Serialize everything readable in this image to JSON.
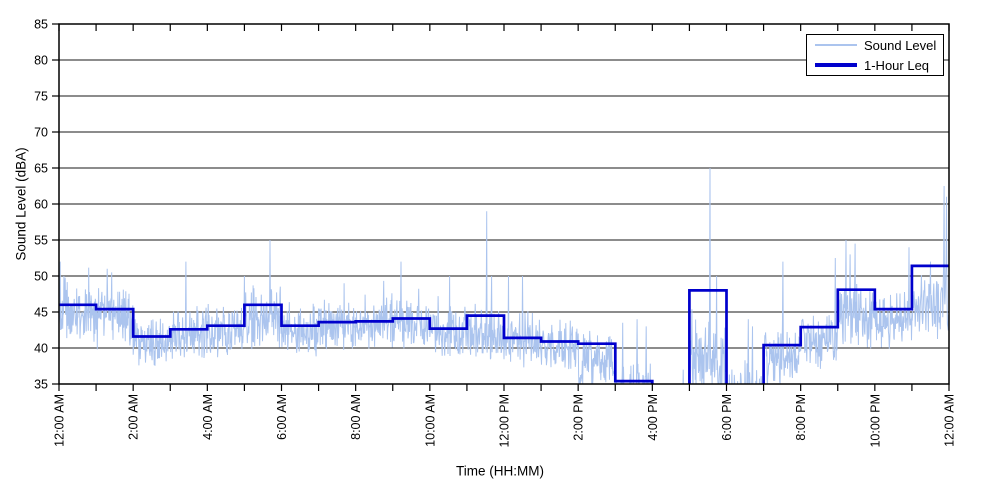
{
  "chart_data": {
    "type": "line",
    "title": "",
    "xlabel": "Time (HH:MM)",
    "ylabel": "Sound Level (dBA)",
    "ylim": [
      35,
      85
    ],
    "yticks": [
      35,
      40,
      45,
      50,
      55,
      60,
      65,
      70,
      75,
      80,
      85
    ],
    "x_range_hours": [
      0,
      24
    ],
    "x_major_tick_every_hours": 2,
    "x_minor_tick_every_hours": 1,
    "x_tick_labels": [
      "12:00 AM",
      "2:00 AM",
      "4:00 AM",
      "6:00 AM",
      "8:00 AM",
      "10:00 AM",
      "12:00 PM",
      "2:00 PM",
      "4:00 PM",
      "6:00 PM",
      "8:00 PM",
      "10:00 PM",
      "12:00 AM"
    ],
    "grid": "horizontal-only",
    "legend": {
      "position": "top-right-inside",
      "entries": [
        "Sound Level",
        "1-Hour Leq"
      ]
    },
    "series": [
      {
        "name": "Sound Level",
        "color": "#abc4ee",
        "kind": "noisy minute-resolution trace (synthesized from measured envelope)",
        "hourly_envelope": {
          "hour_start": [
            "12AM",
            "1AM",
            "2AM",
            "3AM",
            "4AM",
            "5AM",
            "6AM",
            "7AM",
            "8AM",
            "9AM",
            "10AM",
            "11AM",
            "12PM",
            "1PM",
            "2PM",
            "3PM",
            "4PM",
            "5PM",
            "6PM",
            "7PM",
            "8PM",
            "9PM",
            "10PM",
            "11PM"
          ],
          "mean": [
            45.0,
            44.3,
            41.0,
            42.0,
            42.3,
            44.0,
            42.5,
            43.0,
            43.5,
            43.3,
            41.8,
            42.0,
            41.0,
            40.3,
            38.5,
            33.5,
            31.5,
            38.5,
            34.0,
            38.5,
            41.0,
            44.5,
            43.5,
            45.5
          ],
          "spread": [
            5,
            5,
            4,
            4.2,
            4.2,
            5,
            4.2,
            3.8,
            3.8,
            4.2,
            4.2,
            4.2,
            4.2,
            4.2,
            5,
            5,
            3,
            6,
            5,
            4.5,
            4.5,
            5.5,
            4.5,
            4.5
          ]
        },
        "notable_spikes_minute_dBA": [
          [
            2,
            52
          ],
          [
            8,
            50
          ],
          [
            78,
            51
          ],
          [
            85,
            50.5
          ],
          [
            205,
            52
          ],
          [
            300,
            50
          ],
          [
            341,
            55
          ],
          [
            553,
            52
          ],
          [
            632,
            50
          ],
          [
            692,
            59
          ],
          [
            700,
            50
          ],
          [
            727,
            50
          ],
          [
            750,
            50
          ],
          [
            912,
            43.5
          ],
          [
            935,
            44
          ],
          [
            950,
            43
          ],
          [
            1010,
            37
          ],
          [
            1053,
            65
          ],
          [
            1064,
            50
          ],
          [
            1115,
            44
          ],
          [
            1122,
            43
          ],
          [
            1154,
            38
          ],
          [
            1171,
            52
          ],
          [
            1256,
            52.5
          ],
          [
            1273,
            55
          ],
          [
            1280,
            53
          ],
          [
            1288,
            54.5
          ],
          [
            1375,
            54
          ],
          [
            1410,
            52
          ],
          [
            1432,
            62.5
          ],
          [
            1436,
            61
          ]
        ],
        "clipped_below_dBA": 35
      },
      {
        "name": "1-Hour Leq",
        "color": "#0000cc",
        "kind": "hourly step line",
        "hour_start": [
          "12AM",
          "1AM",
          "2AM",
          "3AM",
          "4AM",
          "5AM",
          "6AM",
          "7AM",
          "8AM",
          "9AM",
          "10AM",
          "11AM",
          "12PM",
          "1PM",
          "2PM",
          "3PM",
          "4PM",
          "5PM",
          "6PM",
          "7PM",
          "8PM",
          "9PM",
          "10PM",
          "11PM"
        ],
        "hourly_values": [
          46.0,
          45.4,
          41.6,
          42.6,
          43.1,
          46.0,
          43.1,
          43.6,
          43.7,
          44.1,
          42.7,
          44.5,
          41.4,
          40.9,
          40.6,
          35.4,
          null,
          48.0,
          null,
          40.4,
          42.9,
          48.1,
          45.4,
          51.4
        ],
        "null_meaning": "below 35 dBA axis minimum (line clipped off-scale)"
      }
    ]
  },
  "style": {
    "grid_color": "#1a1a1a",
    "axis_color": "#000000",
    "background": "#ffffff"
  }
}
